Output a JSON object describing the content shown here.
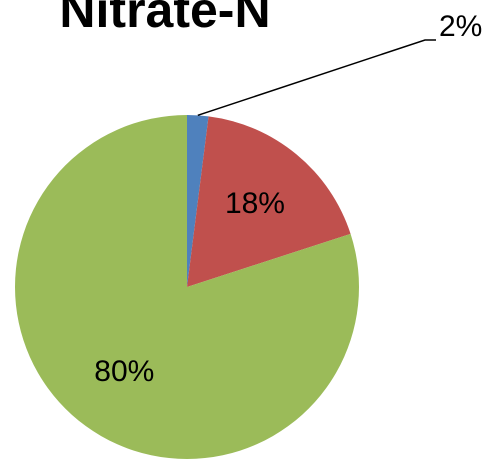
{
  "chart_data": {
    "type": "pie",
    "title": "Nitrate-N",
    "categories": [
      null,
      null,
      null
    ],
    "values": [
      2,
      18,
      80
    ],
    "value_labels": [
      "2%",
      "18%",
      "80%"
    ],
    "colors": [
      "#4f81bd",
      "#c0504d",
      "#9bbb59"
    ]
  }
}
